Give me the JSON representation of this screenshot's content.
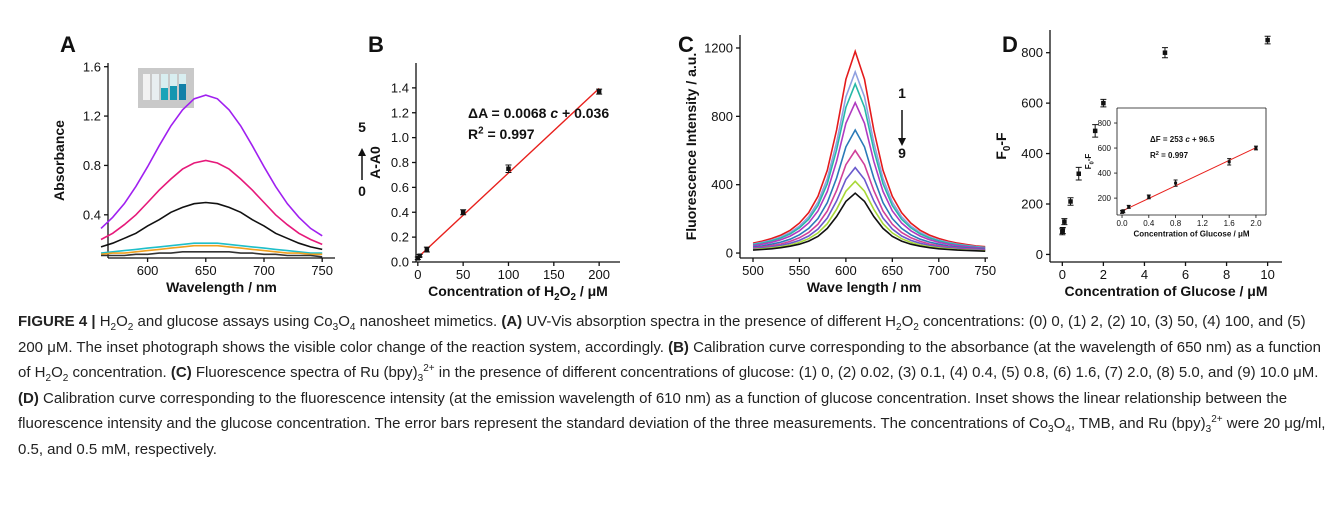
{
  "chart_data": [
    {
      "type": "line",
      "label": "A",
      "xlabel": [
        {
          "text": "Wavelength / nm"
        }
      ],
      "ylabel": [
        {
          "text": "Absorbance"
        }
      ],
      "xlim": [
        566,
        761
      ],
      "xticks": [
        600,
        650,
        700,
        750
      ],
      "ylim": [
        0.05,
        1.63
      ],
      "yticks": [
        0.4,
        0.8,
        1.2,
        1.6
      ],
      "x": [
        560,
        570,
        580,
        590,
        600,
        610,
        620,
        630,
        640,
        650,
        660,
        670,
        680,
        690,
        700,
        710,
        720,
        730,
        740,
        750
      ],
      "series": [
        {
          "color": "#a020f0",
          "values": [
            0.29,
            0.38,
            0.49,
            0.63,
            0.79,
            0.96,
            1.12,
            1.25,
            1.34,
            1.37,
            1.34,
            1.25,
            1.12,
            0.96,
            0.79,
            0.63,
            0.49,
            0.38,
            0.29,
            0.23
          ]
        },
        {
          "color": "#e6197a",
          "values": [
            0.2,
            0.25,
            0.32,
            0.4,
            0.5,
            0.6,
            0.69,
            0.77,
            0.82,
            0.84,
            0.82,
            0.77,
            0.69,
            0.6,
            0.5,
            0.4,
            0.32,
            0.25,
            0.2,
            0.16
          ]
        },
        {
          "color": "#111111",
          "values": [
            0.14,
            0.17,
            0.21,
            0.25,
            0.31,
            0.36,
            0.42,
            0.46,
            0.49,
            0.5,
            0.49,
            0.46,
            0.42,
            0.36,
            0.31,
            0.25,
            0.21,
            0.17,
            0.14,
            0.12
          ]
        },
        {
          "color": "#1fbfc9",
          "values": [
            0.09,
            0.1,
            0.11,
            0.12,
            0.13,
            0.14,
            0.15,
            0.16,
            0.17,
            0.17,
            0.17,
            0.16,
            0.15,
            0.14,
            0.13,
            0.12,
            0.11,
            0.1,
            0.09,
            0.09
          ]
        },
        {
          "color": "#f0a020",
          "values": [
            0.08,
            0.09,
            0.09,
            0.1,
            0.11,
            0.12,
            0.13,
            0.14,
            0.15,
            0.15,
            0.15,
            0.14,
            0.13,
            0.12,
            0.11,
            0.1,
            0.09,
            0.09,
            0.08,
            0.08
          ]
        },
        {
          "color": "#333333",
          "values": [
            0.07,
            0.07,
            0.07,
            0.08,
            0.08,
            0.09,
            0.09,
            0.1,
            0.1,
            0.1,
            0.1,
            0.1,
            0.09,
            0.09,
            0.08,
            0.08,
            0.07,
            0.07,
            0.07,
            0.06
          ]
        }
      ],
      "annotations": [
        [
          {
            "text": "5"
          }
        ],
        [
          {
            "text": "0"
          }
        ]
      ]
    },
    {
      "type": "scatter",
      "label": "B",
      "xlabel": [
        {
          "text": "Concentration of H"
        },
        {
          "text": "2",
          "style": "sub"
        },
        {
          "text": "O"
        },
        {
          "text": "2",
          "style": "sub"
        },
        {
          "text": " / μM"
        }
      ],
      "ylabel": [
        {
          "text": "A-A0"
        }
      ],
      "xlim": [
        -2,
        223
      ],
      "xticks": [
        0,
        50,
        100,
        150,
        200
      ],
      "ylim": [
        0,
        1.6
      ],
      "yticks": [
        {
          "value": 0,
          "label": "0.0"
        },
        0.2,
        0.4,
        0.6,
        0.8,
        {
          "value": 1,
          "label": "1.0"
        },
        1.2,
        1.4
      ],
      "x": [
        0,
        2,
        10,
        50,
        100,
        200
      ],
      "series": [
        {
          "color": "#111111",
          "values": [
            0.03,
            0.05,
            0.1,
            0.4,
            0.75,
            1.37
          ],
          "errors": [
            0.01,
            0.01,
            0.02,
            0.02,
            0.03,
            0.02
          ]
        }
      ],
      "fit": {
        "color": "#e8201c",
        "x": [
          0,
          200
        ],
        "y": [
          0.036,
          1.396
        ]
      },
      "annotations": [
        [
          {
            "text": "ΔA = 0.0068 "
          },
          {
            "text": "c",
            "style": "i"
          },
          {
            "text": " + 0.036"
          }
        ],
        [
          {
            "text": "R"
          },
          {
            "text": "2",
            "style": "sup"
          },
          {
            "text": " = 0.997"
          }
        ]
      ]
    },
    {
      "type": "line",
      "label": "C",
      "xlabel": [
        {
          "text": "Wave length / nm"
        }
      ],
      "ylabel": [
        {
          "text": "Fluorescence Intensity / a.u."
        }
      ],
      "xlim": [
        486,
        753
      ],
      "xticks": [
        500,
        550,
        600,
        650,
        700,
        750
      ],
      "ylim": [
        -29,
        1276
      ],
      "yticks": [
        0,
        400,
        800,
        1200
      ],
      "x": [
        500,
        510,
        520,
        530,
        540,
        550,
        560,
        570,
        580,
        590,
        600,
        610,
        620,
        630,
        640,
        650,
        660,
        670,
        680,
        690,
        700,
        710,
        720,
        730,
        740,
        750
      ],
      "series": [
        {
          "color": "#e41a1c",
          "values": [
            58,
            70,
            85,
            105,
            133,
            175,
            236,
            332,
            484,
            720,
            1017,
            1180,
            1017,
            720,
            484,
            332,
            236,
            175,
            133,
            105,
            85,
            70,
            58,
            50,
            42,
            37
          ]
        },
        {
          "color": "#8fa0e0",
          "values": [
            52,
            63,
            76,
            94,
            120,
            157,
            212,
            298,
            435,
            647,
            914,
            1060,
            914,
            647,
            435,
            298,
            212,
            157,
            120,
            94,
            76,
            63,
            52,
            45,
            38,
            33
          ]
        },
        {
          "color": "#26b8a8",
          "values": [
            49,
            58,
            71,
            88,
            112,
            147,
            198,
            278,
            406,
            604,
            853,
            990,
            853,
            604,
            406,
            278,
            198,
            147,
            112,
            88,
            71,
            58,
            49,
            42,
            36,
            31
          ]
        },
        {
          "color": "#b03ac0",
          "values": [
            43,
            52,
            63,
            78,
            99,
            130,
            176,
            247,
            361,
            537,
            759,
            880,
            759,
            537,
            361,
            247,
            176,
            130,
            99,
            78,
            63,
            52,
            43,
            37,
            32,
            27
          ]
        },
        {
          "color": "#2a7ab8",
          "values": [
            35,
            42,
            52,
            64,
            81,
            107,
            144,
            202,
            295,
            439,
            621,
            720,
            621,
            439,
            295,
            202,
            144,
            107,
            81,
            64,
            52,
            42,
            35,
            30,
            26,
            22
          ]
        },
        {
          "color": "#d0409a",
          "values": [
            29,
            35,
            43,
            53,
            68,
            89,
            120,
            169,
            246,
            366,
            517,
            600,
            517,
            366,
            246,
            169,
            120,
            89,
            68,
            53,
            43,
            35,
            29,
            25,
            22,
            19
          ]
        },
        {
          "color": "#6a5acd",
          "values": [
            25,
            30,
            36,
            45,
            57,
            74,
            100,
            141,
            205,
            305,
            431,
            500,
            431,
            305,
            205,
            141,
            100,
            74,
            57,
            45,
            36,
            30,
            25,
            21,
            18,
            16
          ]
        },
        {
          "color": "#a8d838",
          "values": [
            21,
            25,
            30,
            37,
            47,
            62,
            84,
            118,
            172,
            256,
            362,
            420,
            362,
            256,
            172,
            118,
            84,
            62,
            47,
            37,
            30,
            25,
            21,
            18,
            15,
            13
          ]
        },
        {
          "color": "#111111",
          "values": [
            17,
            21,
            25,
            31,
            40,
            52,
            70,
            98,
            144,
            214,
            302,
            350,
            302,
            214,
            144,
            98,
            70,
            52,
            40,
            31,
            25,
            21,
            17,
            15,
            13,
            11
          ]
        }
      ],
      "annotations": [
        [
          {
            "text": "1"
          }
        ],
        [
          {
            "text": "9"
          }
        ]
      ]
    },
    {
      "type": "scatter",
      "label": "D",
      "xlabel": [
        {
          "text": "Concentration of Glucose / μM"
        }
      ],
      "ylabel": [
        {
          "text": "F"
        },
        {
          "text": "0",
          "style": "sub"
        },
        {
          "text": "-F"
        }
      ],
      "xlim": [
        -0.6,
        10.7
      ],
      "xticks": [
        0,
        2,
        4,
        6,
        8,
        10
      ],
      "ylim": [
        -30,
        890
      ],
      "yticks": [
        0,
        200,
        400,
        600,
        800
      ],
      "x": [
        0,
        0.02,
        0.1,
        0.4,
        0.8,
        1.6,
        2.0,
        5.0,
        10.0
      ],
      "series": [
        {
          "color": "#111111",
          "values": [
            90,
            95,
            130,
            210,
            320,
            490,
            600,
            800,
            850
          ],
          "errors": [
            12,
            12,
            12,
            15,
            25,
            25,
            15,
            20,
            15
          ]
        }
      ]
    },
    {
      "type": "scatter",
      "xlabel": [
        {
          "text": "Concentration of Glucose / μM"
        }
      ],
      "ylabel": [
        {
          "text": "F"
        },
        {
          "text": "0",
          "style": "sub"
        },
        {
          "text": "-F"
        }
      ],
      "xlim": [
        -0.075,
        2.15
      ],
      "xticks": [
        {
          "value": 0,
          "label": "0.0"
        },
        0.4,
        0.8,
        1.2,
        1.6,
        {
          "value": 2,
          "label": "2.0"
        }
      ],
      "ylim": [
        65,
        920
      ],
      "yticks": [
        200,
        400,
        600,
        800
      ],
      "x": [
        0,
        0.02,
        0.1,
        0.4,
        0.8,
        1.6,
        2.0
      ],
      "series": [
        {
          "color": "#111111",
          "values": [
            90,
            95,
            130,
            210,
            320,
            490,
            600
          ],
          "errors": [
            12,
            12,
            12,
            15,
            25,
            25,
            15
          ]
        }
      ],
      "fit": {
        "color": "#e8201c",
        "x": [
          0,
          2
        ],
        "y": [
          96.5,
          602.5
        ]
      },
      "annotations": [
        [
          {
            "text": "ΔF = 253 "
          },
          {
            "text": "c",
            "style": "i"
          },
          {
            "text": " + 96.5"
          }
        ],
        [
          {
            "text": "R"
          },
          {
            "text": "2",
            "style": "sup"
          },
          {
            "text": " = 0.997"
          }
        ]
      ]
    }
  ],
  "caption": [
    {
      "text": "FIGURE 4 |",
      "style": "b"
    },
    {
      "text": " H"
    },
    {
      "text": "2",
      "style": "sub"
    },
    {
      "text": "O"
    },
    {
      "text": "2",
      "style": "sub"
    },
    {
      "text": " and glucose assays using Co"
    },
    {
      "text": "3",
      "style": "sub"
    },
    {
      "text": "O"
    },
    {
      "text": "4",
      "style": "sub"
    },
    {
      "text": " nanosheet mimetics. "
    },
    {
      "text": "(A)",
      "style": "b"
    },
    {
      "text": " UV-Vis absorption spectra in the presence of different H"
    },
    {
      "text": "2",
      "style": "sub"
    },
    {
      "text": "O"
    },
    {
      "text": "2",
      "style": "sub"
    },
    {
      "text": " concentrations: (0) 0, (1) 2, (2) 10, (3) 50, (4) 100, and (5) 200 μM. The inset photograph shows the visible color change of the reaction system, accordingly. "
    },
    {
      "text": "(B)",
      "style": "b"
    },
    {
      "text": " Calibration curve corresponding to the absorbance (at the wavelength of 650 nm) as a function of H"
    },
    {
      "text": "2",
      "style": "sub"
    },
    {
      "text": "O"
    },
    {
      "text": "2",
      "style": "sub"
    },
    {
      "text": " concentration. "
    },
    {
      "text": "(C)",
      "style": "b"
    },
    {
      "text": " Fluorescence spectra of Ru (bpy)"
    },
    {
      "text": "3",
      "style": "sub"
    },
    {
      "text": "2+",
      "style": "sup"
    },
    {
      "text": " in the presence of different concentrations of glucose: (1) 0, (2) 0.02, (3) 0.1, (4) 0.4, (5) 0.8, (6) 1.6, (7) 2.0, (8) 5.0, and (9) 10.0 μM. "
    },
    {
      "text": "(D)",
      "style": "b"
    },
    {
      "text": " Calibration curve corresponding to the fluorescence intensity (at the emission wavelength of 610 nm) as a function of glucose concentration. Inset shows the linear relationship between the fluorescence intensity and the glucose concentration. The error bars represent the standard deviation of the three measurements. The concentrations of Co"
    },
    {
      "text": "3",
      "style": "sub"
    },
    {
      "text": "O"
    },
    {
      "text": "4",
      "style": "sub"
    },
    {
      "text": ", TMB, and Ru (bpy)"
    },
    {
      "text": "3",
      "style": "sub"
    },
    {
      "text": "2+",
      "style": "sup"
    },
    {
      "text": " were 20 μg/ml, 0.5, and 0.5 mM, respectively."
    }
  ]
}
